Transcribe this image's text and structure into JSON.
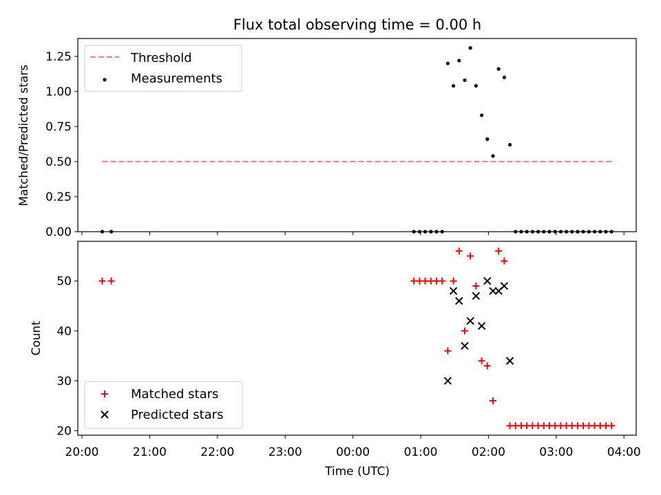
{
  "title": "Flux total observing time = 0.00 h",
  "colors": {
    "threshold": "#ff7f7f",
    "measurement": "#000000",
    "matched": "#ff0000",
    "predicted": "#000000"
  },
  "chart_data": [
    {
      "type": "scatter",
      "ylabel": "Matched/Predicted stars",
      "xlim": [
        "20:00",
        "04:00"
      ],
      "ylim": [
        0,
        1.38
      ],
      "yticks": [
        "0.00",
        "0.25",
        "0.50",
        "0.75",
        "1.00",
        "1.25"
      ],
      "legend_placement": "top-left",
      "threshold": {
        "name": "Threshold",
        "value": 0.5,
        "x_start": "20:18",
        "x_end": "03:50"
      },
      "series": [
        {
          "name": "Measurements",
          "points": [
            [
              "20:18",
              0
            ],
            [
              "20:26",
              0
            ],
            [
              "00:54",
              0
            ],
            [
              "00:59",
              0
            ],
            [
              "01:04",
              0
            ],
            [
              "01:09",
              0
            ],
            [
              "01:14",
              0
            ],
            [
              "01:19",
              0
            ],
            [
              "01:24",
              1.2
            ],
            [
              "01:29",
              1.04
            ],
            [
              "01:34",
              1.22
            ],
            [
              "01:39",
              1.08
            ],
            [
              "01:44",
              1.31
            ],
            [
              "01:49",
              1.04
            ],
            [
              "01:54",
              0.83
            ],
            [
              "01:59",
              0.66
            ],
            [
              "02:04",
              0.54
            ],
            [
              "02:09",
              1.16
            ],
            [
              "02:14",
              1.1
            ],
            [
              "02:19",
              0.62
            ],
            [
              "02:24",
              0
            ],
            [
              "02:29",
              0
            ],
            [
              "02:34",
              0
            ],
            [
              "02:39",
              0
            ],
            [
              "02:44",
              0
            ],
            [
              "02:49",
              0
            ],
            [
              "02:54",
              0
            ],
            [
              "02:59",
              0
            ],
            [
              "03:04",
              0
            ],
            [
              "03:09",
              0
            ],
            [
              "03:14",
              0
            ],
            [
              "03:19",
              0
            ],
            [
              "03:24",
              0
            ],
            [
              "03:29",
              0
            ],
            [
              "03:34",
              0
            ],
            [
              "03:39",
              0
            ],
            [
              "03:44",
              0
            ],
            [
              "03:49",
              0
            ]
          ]
        }
      ]
    },
    {
      "type": "scatter",
      "xlabel": "Time (UTC)",
      "ylabel": "Count",
      "xlim": [
        "20:00",
        "04:00"
      ],
      "ylim": [
        19.5,
        57.5
      ],
      "yticks": [
        "20",
        "30",
        "40",
        "50"
      ],
      "xticks": [
        "20:00",
        "21:00",
        "22:00",
        "23:00",
        "00:00",
        "01:00",
        "02:00",
        "03:00",
        "04:00"
      ],
      "legend_placement": "bottom-left",
      "series": [
        {
          "name": "Matched stars",
          "marker": "plus",
          "points": [
            [
              "20:18",
              50
            ],
            [
              "20:26",
              50
            ],
            [
              "00:54",
              50
            ],
            [
              "00:59",
              50
            ],
            [
              "01:04",
              50
            ],
            [
              "01:09",
              50
            ],
            [
              "01:14",
              50
            ],
            [
              "01:19",
              50
            ],
            [
              "01:24",
              36
            ],
            [
              "01:29",
              50
            ],
            [
              "01:34",
              56
            ],
            [
              "01:39",
              40
            ],
            [
              "01:44",
              55
            ],
            [
              "01:49",
              49
            ],
            [
              "01:54",
              34
            ],
            [
              "01:59",
              33
            ],
            [
              "02:04",
              26
            ],
            [
              "02:09",
              56
            ],
            [
              "02:14",
              54
            ],
            [
              "02:19",
              21
            ],
            [
              "02:24",
              21
            ],
            [
              "02:29",
              21
            ],
            [
              "02:34",
              21
            ],
            [
              "02:39",
              21
            ],
            [
              "02:44",
              21
            ],
            [
              "02:49",
              21
            ],
            [
              "02:54",
              21
            ],
            [
              "02:59",
              21
            ],
            [
              "03:04",
              21
            ],
            [
              "03:09",
              21
            ],
            [
              "03:14",
              21
            ],
            [
              "03:19",
              21
            ],
            [
              "03:24",
              21
            ],
            [
              "03:29",
              21
            ],
            [
              "03:34",
              21
            ],
            [
              "03:39",
              21
            ],
            [
              "03:44",
              21
            ],
            [
              "03:49",
              21
            ]
          ]
        },
        {
          "name": "Predicted stars",
          "marker": "x",
          "points": [
            [
              "01:24",
              30
            ],
            [
              "01:29",
              48
            ],
            [
              "01:34",
              46
            ],
            [
              "01:39",
              37
            ],
            [
              "01:44",
              42
            ],
            [
              "01:49",
              47
            ],
            [
              "01:54",
              41
            ],
            [
              "01:59",
              50
            ],
            [
              "02:04",
              48
            ],
            [
              "02:09",
              48
            ],
            [
              "02:14",
              49
            ],
            [
              "02:19",
              34
            ]
          ]
        }
      ]
    }
  ]
}
